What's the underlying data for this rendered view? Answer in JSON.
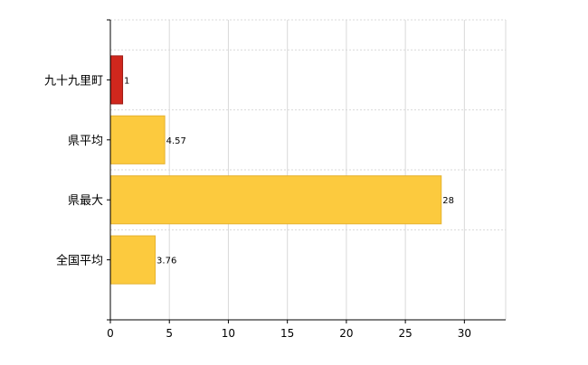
{
  "chart_data": {
    "type": "bar",
    "orientation": "horizontal",
    "categories": [
      "九十九里町",
      "県平均",
      "県最大",
      "全国平均"
    ],
    "values": [
      1,
      4.57,
      28,
      3.76
    ],
    "data_labels": [
      "1",
      "4.57",
      "28",
      "3.76"
    ],
    "xticks": [
      0,
      5,
      10,
      15,
      20,
      25,
      30
    ],
    "xlim": [
      0,
      33.5
    ],
    "title": "",
    "xlabel": "",
    "ylabel": "",
    "grid": true,
    "legend": "none",
    "colors": {
      "highlight": "#D0271D",
      "highlight_border": "#9E1B14",
      "default": "#FCCA3E",
      "default_border": "#E6B22E",
      "grid": "#D9D9D9",
      "axis": "#000000"
    },
    "highlight_index": 0
  }
}
